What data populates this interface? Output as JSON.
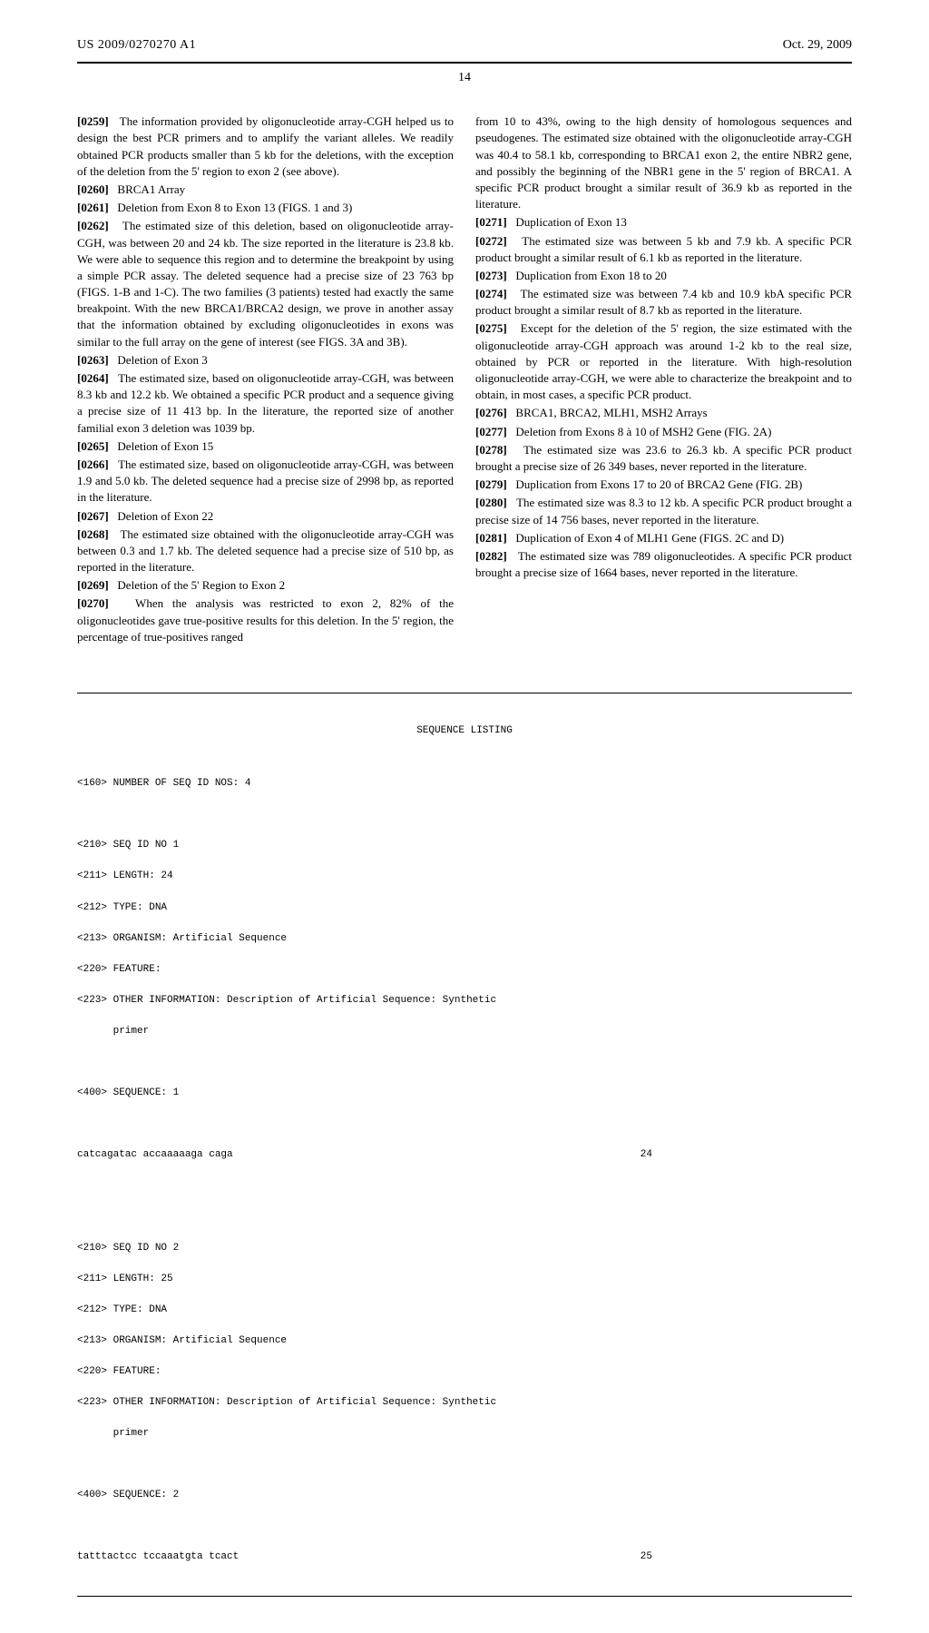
{
  "header": {
    "patent_number": "US 2009/0270270 A1",
    "date": "Oct. 29, 2009",
    "page_number": "14"
  },
  "left_col": {
    "p259": {
      "num": "[0259]",
      "text": "The information provided by oligonucleotide array-CGH helped us to design the best PCR primers and to amplify the variant alleles. We readily obtained PCR products smaller than 5 kb for the deletions, with the exception of the deletion from the 5' region to exon 2 (see above)."
    },
    "p260": {
      "num": "[0260]",
      "text": "BRCA1 Array"
    },
    "p261": {
      "num": "[0261]",
      "text": "Deletion from Exon 8 to Exon 13 (FIGS. 1 and 3)"
    },
    "p262": {
      "num": "[0262]",
      "text": "The estimated size of this deletion, based on oligonucleotide array-CGH, was between 20 and 24 kb. The size reported in the literature is 23.8 kb. We were able to sequence this region and to determine the breakpoint by using a simple PCR assay. The deleted sequence had a precise size of 23 763 bp (FIGS. 1-B and 1-C). The two families (3 patients) tested had exactly the same breakpoint. With the new BRCA1/BRCA2 design, we prove in another assay that the information obtained by excluding oligonucleotides in exons was similar to the full array on the gene of interest (see FIGS. 3A and 3B)."
    },
    "p263": {
      "num": "[0263]",
      "text": "Deletion of Exon 3"
    },
    "p264": {
      "num": "[0264]",
      "text": "The estimated size, based on oligonucleotide array-CGH, was between 8.3 kb and 12.2 kb. We obtained a specific PCR product and a sequence giving a precise size of 11 413 bp. In the literature, the reported size of another familial exon 3 deletion was 1039 bp."
    },
    "p265": {
      "num": "[0265]",
      "text": "Deletion of Exon 15"
    },
    "p266": {
      "num": "[0266]",
      "text": "The estimated size, based on oligonucleotide array-CGH, was between 1.9 and 5.0 kb. The deleted sequence had a precise size of 2998 bp, as reported in the literature."
    },
    "p267": {
      "num": "[0267]",
      "text": "Deletion of Exon 22"
    },
    "p268": {
      "num": "[0268]",
      "text": "The estimated size obtained with the oligonucleotide array-CGH was between 0.3 and 1.7 kb. The deleted sequence had a precise size of 510 bp, as reported in the literature."
    },
    "p269": {
      "num": "[0269]",
      "text": "Deletion of the 5' Region to Exon 2"
    },
    "p270": {
      "num": "[0270]",
      "text": "When the analysis was restricted to exon 2, 82% of the oligonucleotides gave true-positive results for this deletion. In the 5' region, the percentage of true-positives ranged"
    }
  },
  "right_col": {
    "p_cont": {
      "text": "from 10 to 43%, owing to the high density of homologous sequences and pseudogenes. The estimated size obtained with the oligonucleotide array-CGH was 40.4 to 58.1 kb, corresponding to BRCA1 exon 2, the entire NBR2 gene, and possibly the beginning of the NBR1 gene in the 5' region of BRCA1. A specific PCR product brought a similar result of 36.9 kb as reported in the literature."
    },
    "p271": {
      "num": "[0271]",
      "text": "Duplication of Exon 13"
    },
    "p272": {
      "num": "[0272]",
      "text": "The estimated size was between 5 kb and 7.9 kb. A specific PCR product brought a similar result of 6.1 kb as reported in the literature."
    },
    "p273": {
      "num": "[0273]",
      "text": "Duplication from Exon 18 to 20"
    },
    "p274": {
      "num": "[0274]",
      "text": "The estimated size was between 7.4 kb and 10.9 kbA specific PCR product brought a similar result of 8.7 kb as reported in the literature."
    },
    "p275": {
      "num": "[0275]",
      "text": "Except for the deletion of the 5' region, the size estimated with the oligonucleotide array-CGH approach was around 1-2 kb to the real size, obtained by PCR or reported in the literature. With high-resolution oligonucleotide array-CGH, we were able to characterize the breakpoint and to obtain, in most cases, a specific PCR product."
    },
    "p276": {
      "num": "[0276]",
      "text": "BRCA1, BRCA2, MLH1, MSH2 Arrays"
    },
    "p277": {
      "num": "[0277]",
      "text": "Deletion from Exons 8 à 10 of MSH2 Gene (FIG. 2A)"
    },
    "p278": {
      "num": "[0278]",
      "text": "The estimated size was 23.6 to 26.3 kb. A specific PCR product brought a precise size of 26 349 bases, never reported in the literature."
    },
    "p279": {
      "num": "[0279]",
      "text": "Duplication from Exons 17 to 20 of BRCA2 Gene (FIG. 2B)"
    },
    "p280": {
      "num": "[0280]",
      "text": "The estimated size was 8.3 to 12 kb. A specific PCR product brought a precise size of 14 756 bases, never reported in the literature."
    },
    "p281": {
      "num": "[0281]",
      "text": "Duplication of Exon 4 of MLH1 Gene (FIGS. 2C and D)"
    },
    "p282": {
      "num": "[0282]",
      "text": "The estimated size was 789 oligonucleotides. A specific PCR product brought a precise size of 1664 bases, never reported in the literature."
    }
  },
  "sequence": {
    "title": "SEQUENCE LISTING",
    "num_seq": "<160> NUMBER OF SEQ ID NOS: 4",
    "seq1": {
      "l1": "<210> SEQ ID NO 1",
      "l2": "<211> LENGTH: 24",
      "l3": "<212> TYPE: DNA",
      "l4": "<213> ORGANISM: Artificial Sequence",
      "l5": "<220> FEATURE:",
      "l6": "<223> OTHER INFORMATION: Description of Artificial Sequence: Synthetic",
      "l7": "      primer",
      "l8": "<400> SEQUENCE: 1",
      "seq": "catcagatac accaaaaaga caga",
      "len": "24"
    },
    "seq2": {
      "l1": "<210> SEQ ID NO 2",
      "l2": "<211> LENGTH: 25",
      "l3": "<212> TYPE: DNA",
      "l4": "<213> ORGANISM: Artificial Sequence",
      "l5": "<220> FEATURE:",
      "l6": "<223> OTHER INFORMATION: Description of Artificial Sequence: Synthetic",
      "l7": "      primer",
      "l8": "<400> SEQUENCE: 2",
      "seq": "tatttactcc tccaaatgta tcact",
      "len": "25"
    }
  }
}
